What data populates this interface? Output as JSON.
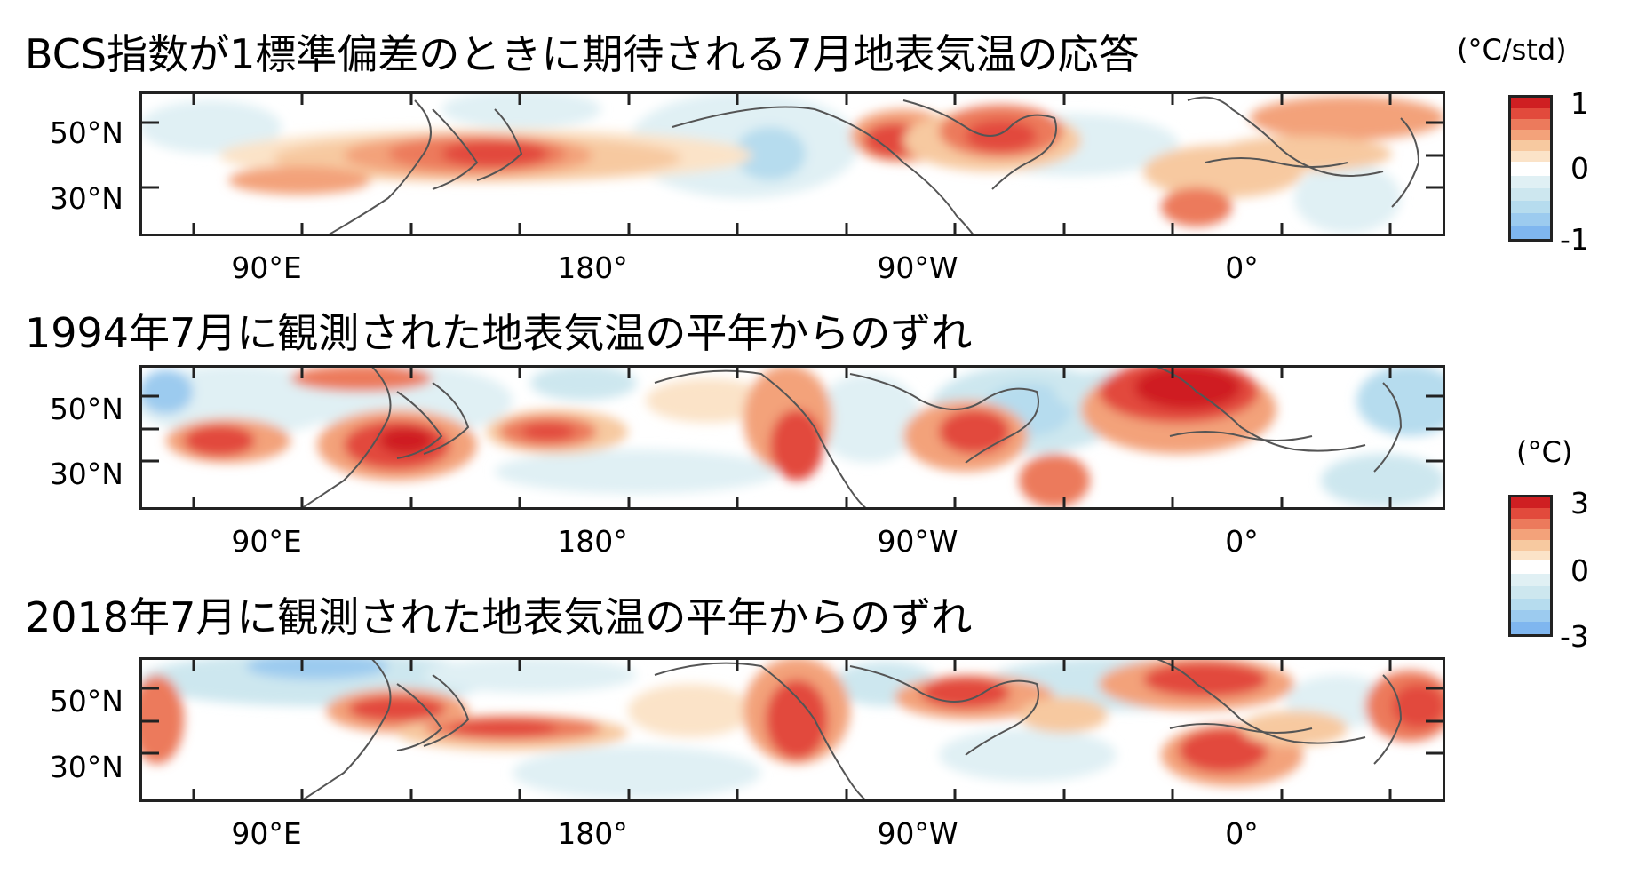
{
  "panels": [
    {
      "title": "BCS指数が1標準偏差のときに期待される7月地表気温の応答",
      "lat_labels": [
        "50°N",
        "30°N"
      ],
      "lon_labels": [
        "90°E",
        "180°",
        "90°W",
        "0°"
      ]
    },
    {
      "title": "1994年7月に観測された地表気温の平年からのずれ",
      "lat_labels": [
        "50°N",
        "30°N"
      ],
      "lon_labels": [
        "90°E",
        "180°",
        "90°W",
        "0°"
      ]
    },
    {
      "title": "2018年7月に観測された地表気温の平年からのずれ",
      "lat_labels": [
        "50°N",
        "30°N"
      ],
      "lon_labels": [
        "90°E",
        "180°",
        "90°W",
        "0°"
      ]
    }
  ],
  "colorbars": [
    {
      "unit": "(°C/std)",
      "ticks": [
        "1",
        "0",
        "-1"
      ],
      "max": 1,
      "min": -1
    },
    {
      "unit": "(°C)",
      "ticks": [
        "3",
        "0",
        "-3"
      ],
      "max": 3,
      "min": -3
    }
  ],
  "colors": {
    "warm": [
      "#fbe3c8",
      "#f7c9a0",
      "#f3a27a",
      "#ec7a5c",
      "#e24a3c",
      "#cf1f22"
    ],
    "cool": [
      "#e0f0f4",
      "#cde7ef",
      "#b6dcee",
      "#9ccbef",
      "#7fb6ef"
    ],
    "coast": "#555555",
    "frame": "#222222"
  }
}
